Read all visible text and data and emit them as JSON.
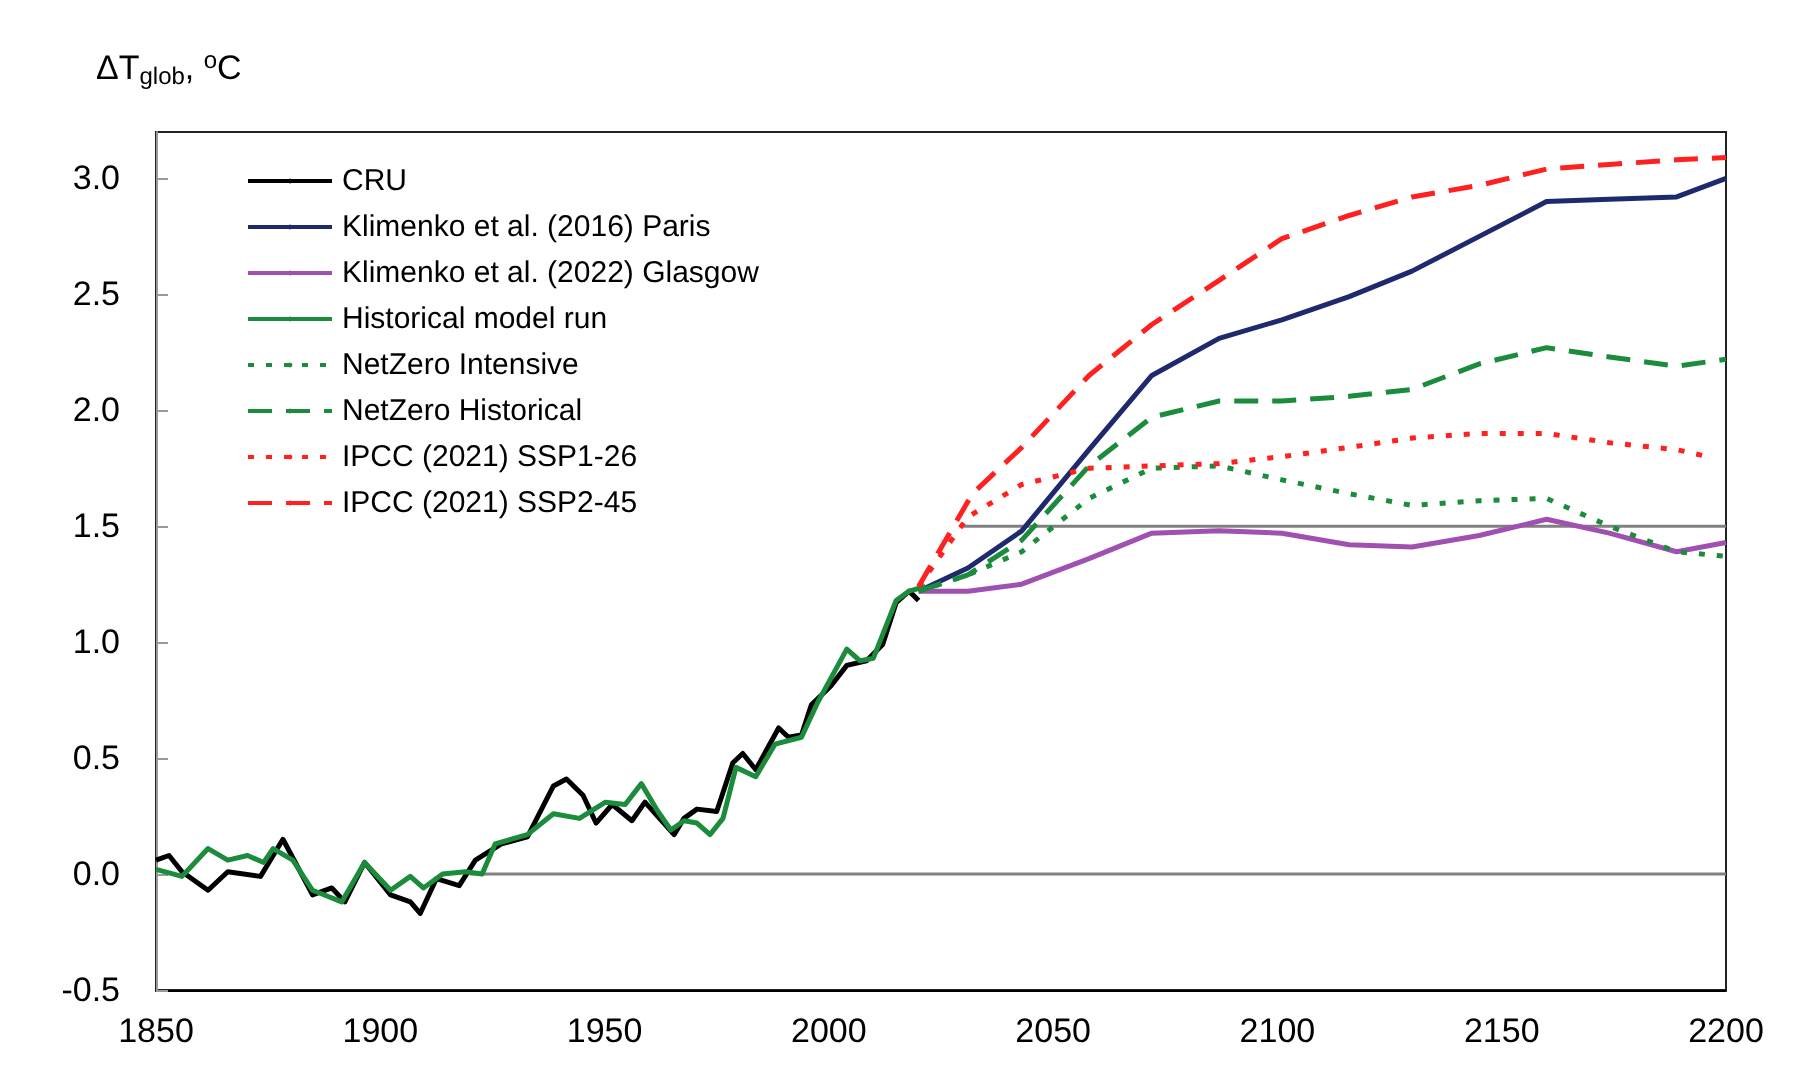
{
  "chart_data": {
    "type": "line",
    "ylabel": "ΔT$_{glob}$, $^{o}$C",
    "xlim": [
      1850,
      2200
    ],
    "xticks": [
      1850,
      1900,
      1950,
      2000,
      2050,
      2100,
      2150,
      2200
    ],
    "ylim": [
      -0.5,
      3.2
    ],
    "yticks": [
      -0.5,
      {
        "value": 0,
        "label": "0.0"
      },
      0.5,
      {
        "value": 1,
        "label": "1.0"
      },
      1.5,
      {
        "value": 2,
        "label": "2.0"
      },
      2.5,
      {
        "value": 3,
        "label": "3.0"
      }
    ],
    "grid": false,
    "legend": "top left",
    "marker": "none",
    "series": [
      {
        "color": "#808080",
        "line_style": "solid",
        "x": [
          1920,
          2200
        ],
        "values": [
          0,
          0
        ]
      },
      {
        "color": "#808080",
        "line_style": "solid",
        "x": [
          2030,
          2200
        ],
        "values": [
          1.5,
          1.5
        ]
      },
      {
        "name": "CRU",
        "color": "#000000",
        "line_style": "solid",
        "x": [
          1850,
          1852.9,
          1855.8,
          1861.6,
          1866,
          1873.3,
          1878.3,
          1884.9,
          1889.2,
          1892.1,
          1896.5,
          1902.3,
          1906.7,
          1908.9,
          1912.5,
          1917.6,
          1921.2,
          1927,
          1932.8,
          1938.6,
          1941.5,
          1945.2,
          1948.1,
          1951.7,
          1956.1,
          1959,
          1965.5,
          1967.7,
          1970.6,
          1975,
          1978.6,
          1980.8,
          1983.7,
          1988.8,
          1991,
          1993.9,
          1996.1,
          2000.4,
          2004,
          2008.4,
          2012,
          2015,
          2017.9,
          2020
        ],
        "values": [
          0.06,
          0.08,
          0.01,
          -0.07,
          0.01,
          -0.01,
          0.15,
          -0.09,
          -0.06,
          -0.12,
          0.05,
          -0.09,
          -0.12,
          -0.17,
          -0.02,
          -0.05,
          0.06,
          0.13,
          0.16,
          0.38,
          0.41,
          0.34,
          0.22,
          0.3,
          0.23,
          0.31,
          0.17,
          0.24,
          0.28,
          0.27,
          0.48,
          0.52,
          0.45,
          0.63,
          0.59,
          0.6,
          0.73,
          0.81,
          0.9,
          0.92,
          0.99,
          1.17,
          1.22,
          1.18
        ]
      },
      {
        "name": "Klimenko et al. (2016) Paris",
        "color": "#1f2a6e",
        "line_style": "solid",
        "x": [
          2020,
          2031,
          2043,
          2058,
          2072,
          2087,
          2101,
          2116,
          2130,
          2145,
          2160,
          2174,
          2189,
          2200
        ],
        "values": [
          1.22,
          1.32,
          1.48,
          1.83,
          2.15,
          2.31,
          2.39,
          2.49,
          2.6,
          2.75,
          2.9,
          2.91,
          2.92,
          3.0
        ]
      },
      {
        "name": "Klimenko et al. (2022) Glasgow",
        "color": "#a050b0",
        "line_style": "solid",
        "x": [
          2020,
          2031,
          2043,
          2058,
          2072,
          2087,
          2101,
          2116,
          2130,
          2145,
          2160,
          2174,
          2189,
          2200
        ],
        "values": [
          1.22,
          1.22,
          1.25,
          1.36,
          1.47,
          1.48,
          1.47,
          1.42,
          1.41,
          1.46,
          1.53,
          1.47,
          1.39,
          1.43
        ]
      },
      {
        "name": "Historical model run",
        "color": "#1a8c3c",
        "line_style": "solid",
        "x": [
          1850,
          1855.8,
          1861.6,
          1866,
          1870.4,
          1874,
          1876.1,
          1880.5,
          1884.9,
          1891.4,
          1896.5,
          1902.3,
          1906.7,
          1909.6,
          1913.9,
          1919,
          1922.7,
          1925.6,
          1932.8,
          1938.6,
          1944.4,
          1950.2,
          1954.6,
          1958.2,
          1961.9,
          1964.8,
          1967.7,
          1970.6,
          1973.5,
          1976.4,
          1979.3,
          1983.7,
          1988,
          1993.9,
          1997.5,
          2004,
          2006.9,
          2009.9,
          2015,
          2017.9,
          2021.5
        ],
        "values": [
          0.02,
          -0.01,
          0.11,
          0.06,
          0.08,
          0.05,
          0.11,
          0.06,
          -0.07,
          -0.12,
          0.05,
          -0.07,
          -0.01,
          -0.06,
          0,
          0.01,
          0,
          0.13,
          0.17,
          0.26,
          0.24,
          0.31,
          0.3,
          0.39,
          0.27,
          0.19,
          0.23,
          0.22,
          0.17,
          0.24,
          0.46,
          0.42,
          0.56,
          0.59,
          0.74,
          0.97,
          0.92,
          0.93,
          1.18,
          1.22,
          1.24
        ]
      },
      {
        "name": "NetZero Intensive",
        "color": "#1a8c3c",
        "line_style": "dotted",
        "x": [
          2020,
          2031,
          2043,
          2058,
          2072,
          2087,
          2101,
          2116,
          2130,
          2145,
          2160,
          2174,
          2189,
          2200
        ],
        "values": [
          1.22,
          1.29,
          1.39,
          1.62,
          1.75,
          1.76,
          1.7,
          1.64,
          1.59,
          1.61,
          1.62,
          1.5,
          1.39,
          1.37
        ]
      },
      {
        "name": "NetZero Historical",
        "color": "#1a8c3c",
        "line_style": "dashed",
        "x": [
          2020,
          2031,
          2043,
          2058,
          2072,
          2087,
          2101,
          2116,
          2130,
          2145,
          2160,
          2174,
          2189,
          2200
        ],
        "values": [
          1.22,
          1.29,
          1.44,
          1.76,
          1.97,
          2.04,
          2.04,
          2.06,
          2.09,
          2.2,
          2.27,
          2.23,
          2.19,
          2.22
        ]
      },
      {
        "name": "IPCC (2021) SSP1-26",
        "color": "#ff2020",
        "line_style": "dotted",
        "x": [
          2020,
          2031,
          2043,
          2058,
          2072,
          2087,
          2101,
          2116,
          2130,
          2145,
          2160,
          2174,
          2189,
          2196
        ],
        "values": [
          1.24,
          1.54,
          1.68,
          1.75,
          1.76,
          1.77,
          1.8,
          1.84,
          1.88,
          1.9,
          1.9,
          1.86,
          1.83,
          1.8
        ]
      },
      {
        "name": "IPCC (2021) SSP2-45",
        "color": "#ff2020",
        "line_style": "dashed",
        "x": [
          2020,
          2032,
          2043,
          2058,
          2072,
          2087,
          2101,
          2116,
          2130,
          2145,
          2160,
          2174,
          2189,
          2200
        ],
        "values": [
          1.24,
          1.64,
          1.84,
          2.15,
          2.37,
          2.56,
          2.74,
          2.84,
          2.92,
          2.97,
          3.04,
          3.06,
          3.08,
          3.09
        ]
      }
    ]
  }
}
